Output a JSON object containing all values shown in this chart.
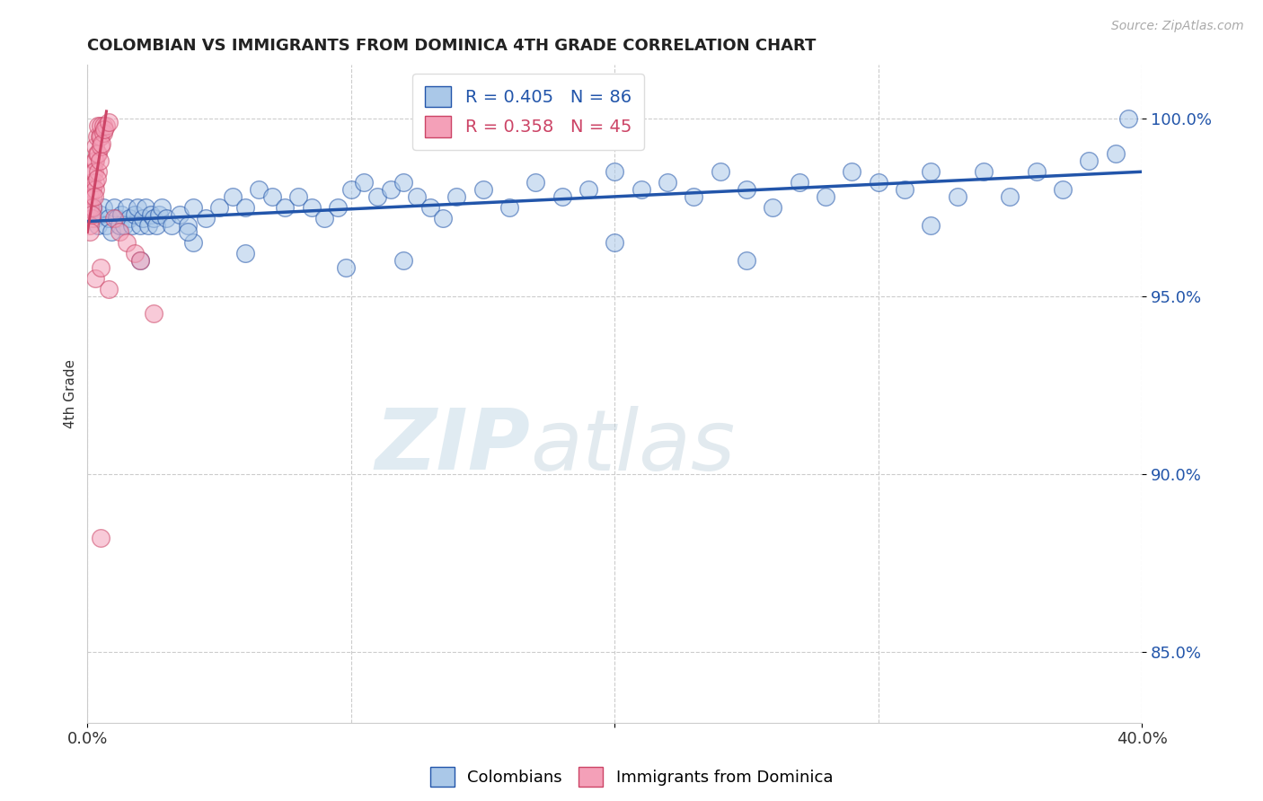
{
  "title": "COLOMBIAN VS IMMIGRANTS FROM DOMINICA 4TH GRADE CORRELATION CHART",
  "source_text": "Source: ZipAtlas.com",
  "ylabel": "4th Grade",
  "y_tick_vals": [
    85.0,
    90.0,
    95.0,
    100.0
  ],
  "x_lim": [
    0.0,
    40.0
  ],
  "y_lim": [
    83.0,
    101.5
  ],
  "colombians_label": "Colombians",
  "dominica_label": "Immigrants from Dominica",
  "watermark": "ZIPatlas",
  "blue_color": "#aac8e8",
  "blue_line_color": "#2255aa",
  "pink_color": "#f4a0b8",
  "pink_line_color": "#cc4466",
  "blue_R": 0.405,
  "blue_N": 86,
  "pink_R": 0.358,
  "pink_N": 45,
  "blue_scatter": [
    [
      0.3,
      97.2
    ],
    [
      0.4,
      97.0
    ],
    [
      0.5,
      97.3
    ],
    [
      0.6,
      97.5
    ],
    [
      0.7,
      97.0
    ],
    [
      0.8,
      97.2
    ],
    [
      0.9,
      96.8
    ],
    [
      1.0,
      97.5
    ],
    [
      1.1,
      97.2
    ],
    [
      1.2,
      97.0
    ],
    [
      1.3,
      97.3
    ],
    [
      1.4,
      97.0
    ],
    [
      1.5,
      97.5
    ],
    [
      1.6,
      97.2
    ],
    [
      1.7,
      97.0
    ],
    [
      1.8,
      97.3
    ],
    [
      1.9,
      97.5
    ],
    [
      2.0,
      97.0
    ],
    [
      2.1,
      97.2
    ],
    [
      2.2,
      97.5
    ],
    [
      2.3,
      97.0
    ],
    [
      2.4,
      97.3
    ],
    [
      2.5,
      97.2
    ],
    [
      2.6,
      97.0
    ],
    [
      2.7,
      97.3
    ],
    [
      2.8,
      97.5
    ],
    [
      3.0,
      97.2
    ],
    [
      3.2,
      97.0
    ],
    [
      3.5,
      97.3
    ],
    [
      3.8,
      97.0
    ],
    [
      4.0,
      97.5
    ],
    [
      4.5,
      97.2
    ],
    [
      5.0,
      97.5
    ],
    [
      5.5,
      97.8
    ],
    [
      6.0,
      97.5
    ],
    [
      6.5,
      98.0
    ],
    [
      7.0,
      97.8
    ],
    [
      7.5,
      97.5
    ],
    [
      8.0,
      97.8
    ],
    [
      8.5,
      97.5
    ],
    [
      9.0,
      97.2
    ],
    [
      9.5,
      97.5
    ],
    [
      10.0,
      98.0
    ],
    [
      10.5,
      98.2
    ],
    [
      11.0,
      97.8
    ],
    [
      11.5,
      98.0
    ],
    [
      12.0,
      98.2
    ],
    [
      12.5,
      97.8
    ],
    [
      13.0,
      97.5
    ],
    [
      13.5,
      97.2
    ],
    [
      14.0,
      97.8
    ],
    [
      15.0,
      98.0
    ],
    [
      16.0,
      97.5
    ],
    [
      17.0,
      98.2
    ],
    [
      18.0,
      97.8
    ],
    [
      19.0,
      98.0
    ],
    [
      20.0,
      98.5
    ],
    [
      21.0,
      98.0
    ],
    [
      22.0,
      98.2
    ],
    [
      23.0,
      97.8
    ],
    [
      24.0,
      98.5
    ],
    [
      25.0,
      98.0
    ],
    [
      26.0,
      97.5
    ],
    [
      27.0,
      98.2
    ],
    [
      28.0,
      97.8
    ],
    [
      29.0,
      98.5
    ],
    [
      30.0,
      98.2
    ],
    [
      31.0,
      98.0
    ],
    [
      32.0,
      98.5
    ],
    [
      33.0,
      97.8
    ],
    [
      34.0,
      98.5
    ],
    [
      35.0,
      97.8
    ],
    [
      36.0,
      98.5
    ],
    [
      37.0,
      98.0
    ],
    [
      38.0,
      98.8
    ],
    [
      39.0,
      99.0
    ],
    [
      39.5,
      100.0
    ],
    [
      6.0,
      96.2
    ],
    [
      9.8,
      95.8
    ],
    [
      20.0,
      96.5
    ],
    [
      25.0,
      96.0
    ],
    [
      2.0,
      96.0
    ],
    [
      4.0,
      96.5
    ],
    [
      12.0,
      96.0
    ],
    [
      32.0,
      97.0
    ],
    [
      0.2,
      97.5
    ],
    [
      3.8,
      96.8
    ]
  ],
  "dominica_scatter": [
    [
      0.1,
      97.8
    ],
    [
      0.15,
      98.2
    ],
    [
      0.2,
      98.5
    ],
    [
      0.25,
      98.8
    ],
    [
      0.3,
      99.2
    ],
    [
      0.35,
      99.5
    ],
    [
      0.4,
      99.8
    ],
    [
      0.1,
      97.5
    ],
    [
      0.2,
      98.0
    ],
    [
      0.3,
      98.8
    ],
    [
      0.15,
      97.2
    ],
    [
      0.25,
      98.5
    ],
    [
      0.35,
      99.0
    ],
    [
      0.45,
      99.5
    ],
    [
      0.5,
      99.8
    ],
    [
      0.1,
      97.0
    ],
    [
      0.2,
      97.8
    ],
    [
      0.3,
      98.2
    ],
    [
      0.4,
      99.0
    ],
    [
      0.5,
      99.5
    ],
    [
      0.6,
      99.8
    ],
    [
      0.1,
      96.8
    ],
    [
      0.2,
      97.5
    ],
    [
      0.3,
      98.0
    ],
    [
      0.4,
      98.5
    ],
    [
      0.5,
      99.2
    ],
    [
      0.6,
      99.6
    ],
    [
      0.7,
      99.8
    ],
    [
      0.15,
      97.3
    ],
    [
      0.25,
      97.8
    ],
    [
      0.35,
      98.3
    ],
    [
      0.45,
      98.8
    ],
    [
      0.55,
      99.3
    ],
    [
      0.65,
      99.7
    ],
    [
      0.8,
      99.9
    ],
    [
      1.0,
      97.2
    ],
    [
      1.2,
      96.8
    ],
    [
      1.5,
      96.5
    ],
    [
      1.8,
      96.2
    ],
    [
      2.0,
      96.0
    ],
    [
      0.3,
      95.5
    ],
    [
      0.5,
      95.8
    ],
    [
      0.8,
      95.2
    ],
    [
      0.5,
      88.2
    ],
    [
      2.5,
      94.5
    ]
  ]
}
